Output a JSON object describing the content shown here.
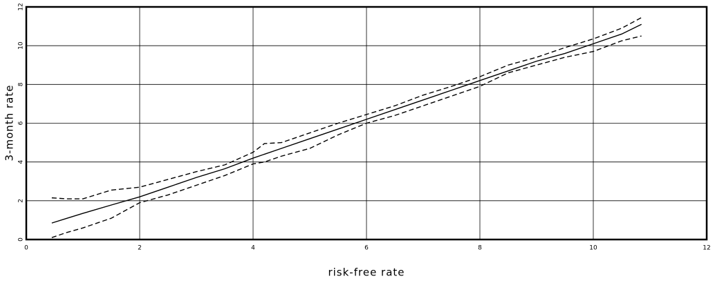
{
  "chart_data": {
    "type": "line",
    "xlabel": "risk-free rate",
    "ylabel": "3-month rate",
    "x": [
      0.45,
      0.7,
      1,
      1.5,
      2,
      2.5,
      3,
      3.5,
      4,
      4.2,
      4.5,
      5,
      5.5,
      6,
      6.5,
      7,
      7.5,
      8,
      8.5,
      9,
      9.5,
      10,
      10.5,
      10.85
    ],
    "series": [
      {
        "color": "#000000",
        "style": "solid",
        "values": [
          0.85,
          1.08,
          1.35,
          1.78,
          2.2,
          2.7,
          3.2,
          3.65,
          4.2,
          4.4,
          4.7,
          5.2,
          5.7,
          6.2,
          6.7,
          7.2,
          7.7,
          8.2,
          8.7,
          9.2,
          9.6,
          10.1,
          10.6,
          11.1
        ]
      },
      {
        "color": "#000000",
        "style": "dashed",
        "values": [
          2.15,
          2.1,
          2.1,
          2.55,
          2.7,
          3.1,
          3.5,
          3.85,
          4.5,
          4.95,
          5.0,
          5.5,
          6.0,
          6.45,
          6.9,
          7.45,
          7.9,
          8.4,
          9.0,
          9.4,
          9.9,
          10.35,
          10.9,
          11.45
        ]
      },
      {
        "color": "#000000",
        "style": "dashed",
        "values": [
          0.1,
          0.35,
          0.6,
          1.1,
          1.9,
          2.3,
          2.8,
          3.3,
          3.9,
          4.0,
          4.3,
          4.7,
          5.4,
          6.0,
          6.4,
          6.9,
          7.4,
          7.9,
          8.6,
          9.0,
          9.4,
          9.7,
          10.25,
          10.5
        ]
      }
    ],
    "xlim": [
      0,
      12
    ],
    "xticks": [
      0,
      2,
      4,
      6,
      8,
      10,
      12
    ],
    "ylim": [
      0,
      12
    ],
    "yticks": [
      0,
      2,
      4,
      6,
      8,
      10,
      12
    ],
    "grid": true
  }
}
